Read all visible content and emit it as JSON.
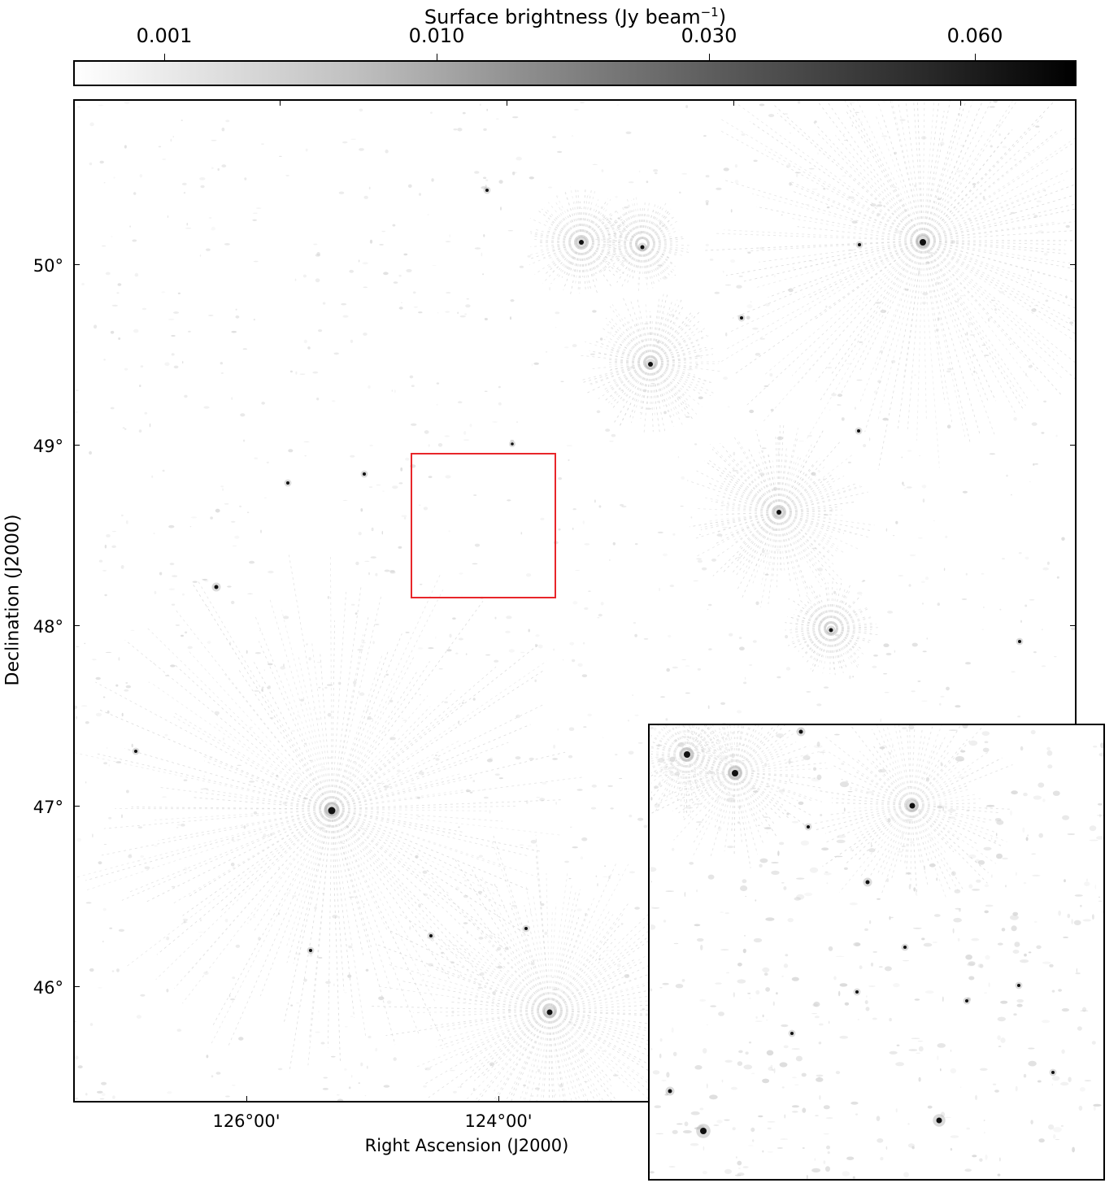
{
  "colorbar": {
    "label": "Surface brightness (Jy beam",
    "label_superscript": "−1",
    "label_close": ")",
    "tick_labels": [
      "0.001",
      "0.010",
      "0.030",
      "0.060"
    ],
    "colormap": "grayscale"
  },
  "axes": {
    "ylabel": "Declination (J2000)",
    "xlabel": "Right Ascension (J2000)",
    "y_tick_labels": [
      "50°",
      "49°",
      "48°",
      "47°",
      "46°"
    ],
    "x_tick_labels": [
      "126°00'",
      "124°00'"
    ]
  },
  "highlight_box_color": "#e8262a"
}
